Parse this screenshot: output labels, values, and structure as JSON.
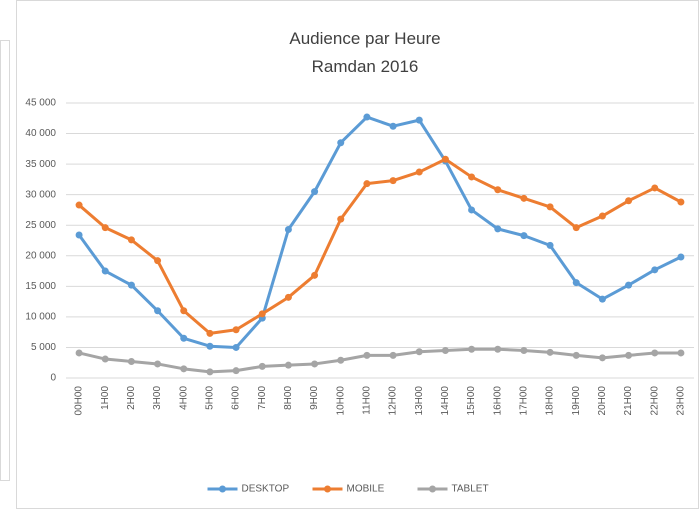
{
  "chart_data": {
    "type": "line",
    "title": "Audience par Heure",
    "subtitle": "Ramdan 2016",
    "categories": [
      "00H00",
      "1H00",
      "2H00",
      "3H00",
      "4H00",
      "5H00",
      "6H00",
      "7H00",
      "8H00",
      "9H00",
      "10H00",
      "11H00",
      "12H00",
      "13H00",
      "14H00",
      "15H00",
      "16H00",
      "17H00",
      "18H00",
      "19H00",
      "20H00",
      "21H00",
      "22H00",
      "23H00"
    ],
    "series": [
      {
        "name": "DESKTOP",
        "color": "#5b9bd5",
        "values": [
          23400,
          17500,
          15200,
          11000,
          6500,
          5200,
          5000,
          9800,
          24300,
          30500,
          38500,
          42700,
          41200,
          42200,
          35500,
          27500,
          24400,
          23300,
          21700,
          15600,
          12900,
          15200,
          17700,
          19800
        ]
      },
      {
        "name": "MOBILE",
        "color": "#ed7d31",
        "values": [
          28300,
          24600,
          22600,
          19200,
          11000,
          7300,
          7900,
          10500,
          13200,
          16800,
          26000,
          31800,
          32300,
          33700,
          35800,
          32900,
          30800,
          29400,
          28000,
          24600,
          26500,
          29000,
          31100,
          28800
        ]
      },
      {
        "name": "TABLET",
        "color": "#a5a5a5",
        "values": [
          4100,
          3100,
          2700,
          2300,
          1500,
          1000,
          1200,
          1900,
          2100,
          2300,
          2900,
          3700,
          3700,
          4300,
          4500,
          4700,
          4700,
          4500,
          4200,
          3700,
          3300,
          3700,
          4100,
          4100
        ]
      }
    ],
    "ylim": [
      0,
      45000
    ],
    "yticks": [
      {
        "value": 0,
        "label": "0"
      },
      {
        "value": 5000,
        "label": "5 000"
      },
      {
        "value": 10000,
        "label": "10 000"
      },
      {
        "value": 15000,
        "label": "15 000"
      },
      {
        "value": 20000,
        "label": "20 000"
      },
      {
        "value": 25000,
        "label": "25 000"
      },
      {
        "value": 30000,
        "label": "30 000"
      },
      {
        "value": 35000,
        "label": "35 000"
      },
      {
        "value": 40000,
        "label": "40 000"
      },
      {
        "value": 45000,
        "label": "45 000"
      }
    ],
    "grid": true,
    "legend": "bottom"
  }
}
